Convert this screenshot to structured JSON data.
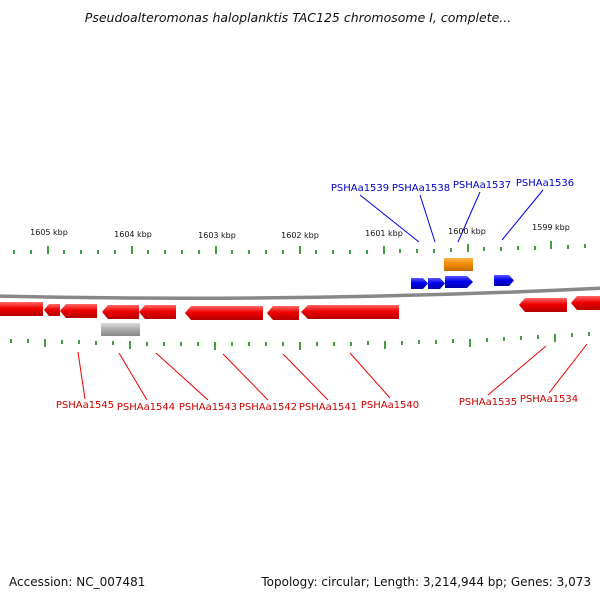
{
  "header": {
    "title": "Pseudoalteromonas haloplanktis TAC125 chromosome I, complete..."
  },
  "axis": {
    "kbp_labels": [
      "1605 kbp",
      "1604 kbp",
      "1603 kbp",
      "1602 kbp",
      "1601 kbp",
      "1600 kbp",
      "1599 kbp"
    ]
  },
  "genes": {
    "forward": [
      "PSHAa1539",
      "PSHAa1538",
      "PSHAa1537",
      "PSHAa1536"
    ],
    "reverse": [
      "PSHAa1545",
      "PSHAa1544",
      "PSHAa1543",
      "PSHAa1542",
      "PSHAa1541",
      "PSHAa1540",
      "PSHAa1535",
      "PSHAa1534"
    ]
  },
  "colors": {
    "forward_gene": "#0000ee",
    "reverse_gene": "#ee0000",
    "rna_feature": "#f08a00",
    "pseudo_feature": "#aaaaaa",
    "tick": "#008000",
    "backbone": "#888888",
    "forward_label": "#0000cc",
    "reverse_label": "#cc0000"
  },
  "footer": {
    "accession": "Accession: NC_007481",
    "summary": "Topology: circular; Length: 3,214,944 bp; Genes: 3,073"
  }
}
